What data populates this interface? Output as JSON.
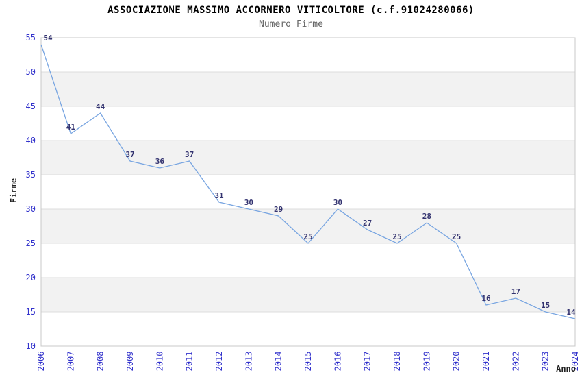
{
  "chart_data": {
    "type": "line",
    "title": "ASSOCIAZIONE MASSIMO ACCORNERO VITICOLTORE (c.f.91024280066)",
    "subtitle": "Numero Firme",
    "xlabel": "Anno",
    "ylabel": "Firme",
    "x": [
      "2006",
      "2007",
      "2008",
      "2009",
      "2010",
      "2011",
      "2012",
      "2013",
      "2014",
      "2015",
      "2016",
      "2017",
      "2018",
      "2019",
      "2020",
      "2021",
      "2022",
      "2023",
      "2024"
    ],
    "series": [
      {
        "name": "Numero Firme",
        "values": [
          54,
          41,
          44,
          37,
          36,
          37,
          31,
          30,
          29,
          25,
          30,
          27,
          25,
          28,
          25,
          16,
          17,
          15,
          14
        ]
      }
    ],
    "ylim": [
      10,
      55
    ],
    "ytick_step": 5,
    "yticks": [
      10,
      15,
      20,
      25,
      30,
      35,
      40,
      45,
      50,
      55
    ],
    "grid": true,
    "legend": "none",
    "point_labels": true,
    "colors": {
      "line": "#78a5e1",
      "tick_label": "#3333cc",
      "point_label": "#333370",
      "band": "#f2f2f2",
      "gridline": "#dcdcdc",
      "border": "#c8c8c8",
      "title": "#000000",
      "subtitle": "#666666",
      "axis_label": "#222222",
      "background": "#ffffff"
    }
  }
}
